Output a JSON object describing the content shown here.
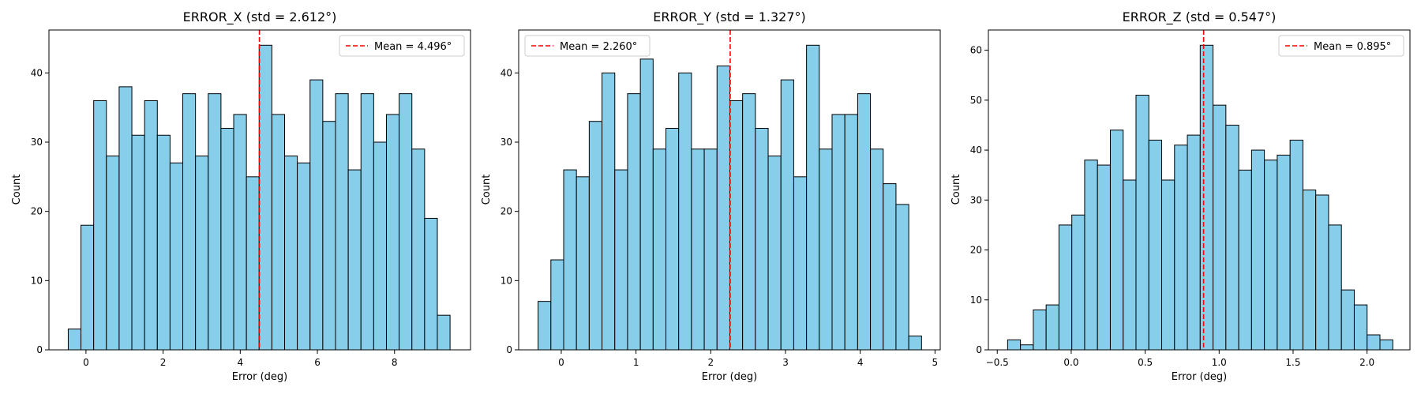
{
  "colors": {
    "bar_fill": "#87ceeb",
    "bar_edge": "#000000",
    "mean_line": "#ff0000",
    "axes": "#000000",
    "background": "#ffffff"
  },
  "chart_data": [
    {
      "type": "bar",
      "histogram": true,
      "title": "ERROR_X (std = 2.612°)",
      "xlabel": "Error (deg)",
      "ylabel": "Count",
      "xlim": [
        -0.96,
        9.97
      ],
      "ylim": [
        0,
        46.2
      ],
      "xticks": [
        0,
        2,
        4,
        6,
        8
      ],
      "xtick_labels": [
        "0",
        "2",
        "4",
        "6",
        "8"
      ],
      "yticks": [
        0,
        10,
        20,
        30,
        40
      ],
      "ytick_labels": [
        "0",
        "10",
        "20",
        "30",
        "40"
      ],
      "bin_start": -0.46,
      "bin_width": 0.33,
      "values": [
        3,
        18,
        36,
        28,
        38,
        31,
        36,
        31,
        27,
        37,
        28,
        37,
        32,
        34,
        25,
        44,
        34,
        28,
        27,
        39,
        33,
        37,
        26,
        37,
        30,
        34,
        37,
        29,
        19,
        5
      ],
      "mean_line": {
        "x": 4.496,
        "label": "Mean = 4.496°"
      },
      "legend_position": "upper right",
      "grid": false
    },
    {
      "type": "bar",
      "histogram": true,
      "title": "ERROR_Y (std = 1.327°)",
      "xlabel": "Error (deg)",
      "ylabel": "Count",
      "xlim": [
        -0.57,
        5.07
      ],
      "ylim": [
        0,
        46.2
      ],
      "xticks": [
        0,
        1,
        2,
        3,
        4,
        5
      ],
      "xtick_labels": [
        "0",
        "1",
        "2",
        "3",
        "4",
        "5"
      ],
      "yticks": [
        0,
        10,
        20,
        30,
        40
      ],
      "ytick_labels": [
        "0",
        "10",
        "20",
        "30",
        "40"
      ],
      "bin_start": -0.31,
      "bin_width": 0.171,
      "values": [
        7,
        13,
        26,
        25,
        33,
        40,
        26,
        37,
        42,
        29,
        32,
        40,
        29,
        29,
        41,
        36,
        37,
        32,
        28,
        39,
        25,
        44,
        29,
        34,
        34,
        37,
        29,
        24,
        21,
        2
      ],
      "mean_line": {
        "x": 2.26,
        "label": "Mean = 2.260°"
      },
      "legend_position": "upper left",
      "grid": false
    },
    {
      "type": "bar",
      "histogram": true,
      "title": "ERROR_Z (std = 0.547°)",
      "xlabel": "Error (deg)",
      "ylabel": "Count",
      "xlim": [
        -0.56,
        2.29
      ],
      "ylim": [
        0,
        64.05
      ],
      "xticks": [
        -0.5,
        0.0,
        0.5,
        1.0,
        1.5,
        2.0
      ],
      "xtick_labels": [
        "−0.5",
        "0.0",
        "0.5",
        "1.0",
        "1.5",
        "2.0"
      ],
      "yticks": [
        0,
        10,
        20,
        30,
        40,
        50,
        60
      ],
      "ytick_labels": [
        "0",
        "10",
        "20",
        "30",
        "40",
        "50",
        "60"
      ],
      "bin_start": -0.43,
      "bin_width": 0.0868,
      "values": [
        2,
        1,
        8,
        9,
        25,
        27,
        38,
        37,
        44,
        34,
        51,
        42,
        34,
        41,
        43,
        61,
        49,
        45,
        36,
        40,
        38,
        39,
        42,
        32,
        31,
        25,
        12,
        9,
        3,
        2
      ],
      "mean_line": {
        "x": 0.895,
        "label": "Mean = 0.895°"
      },
      "legend_position": "upper right",
      "grid": false
    }
  ]
}
